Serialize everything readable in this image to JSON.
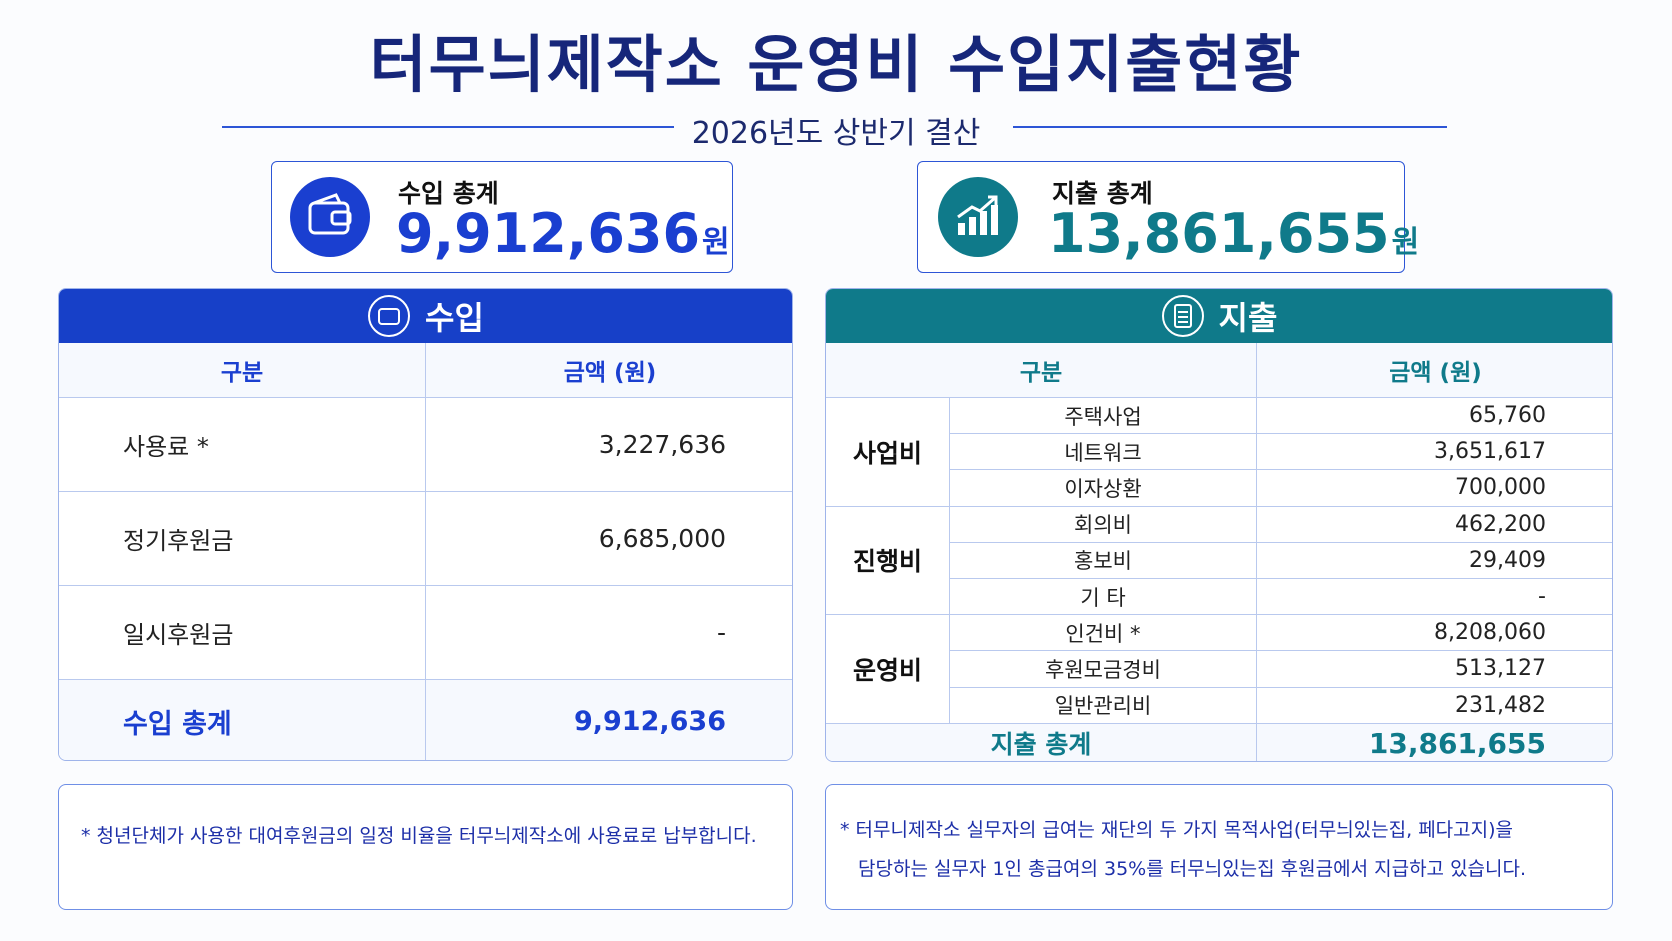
{
  "header": {
    "title": "터무늬제작소 운영비 수입지출현황",
    "subtitle": "2026년도 상반기 결산"
  },
  "summary": {
    "income": {
      "label": "수입 총계",
      "amount": "9,912,636",
      "unit": "원"
    },
    "expense": {
      "label": "지출 총계",
      "amount": "13,861,655",
      "unit": "원"
    }
  },
  "income_table": {
    "title": "수입",
    "columns": [
      "구분",
      "금액 (원)"
    ],
    "rows": [
      [
        "사용료 *",
        "3,227,636"
      ],
      [
        "정기후원금",
        "6,685,000"
      ],
      [
        "일시후원금",
        "-"
      ]
    ],
    "total": [
      "수입 총계",
      "9,912,636"
    ]
  },
  "expense_table": {
    "title": "지출",
    "columns": [
      "구분",
      "금액 (원)"
    ],
    "groups": [
      {
        "name": "사업비",
        "rows": [
          [
            "주택사업",
            "65,760"
          ],
          [
            "네트워크",
            "3,651,617"
          ],
          [
            "이자상환",
            "700,000"
          ]
        ]
      },
      {
        "name": "진행비",
        "rows": [
          [
            "회의비",
            "462,200"
          ],
          [
            "홍보비",
            "29,409"
          ],
          [
            "기 타",
            "-"
          ]
        ]
      },
      {
        "name": "운영비",
        "rows": [
          [
            "인건비 *",
            "8,208,060"
          ],
          [
            "후원모금경비",
            "513,127"
          ],
          [
            "일반관리비",
            "231,482"
          ]
        ]
      }
    ],
    "total": [
      "지출 총계",
      "13,861,655"
    ]
  },
  "notes": {
    "income": "* 청년단체가 사용한 대여후원금의 일정 비율을 터무늬제작소에 사용료로 납부합니다.",
    "expense": [
      "* 터무니제작소 실무자의 급여는 재단의 두 가지 목적사업(터무늬있는집, 페다고지)을",
      "담당하는 실무자 1인 총급여의 35%를 터무늬있는집 후원금에서 지급하고 있습니다."
    ]
  }
}
